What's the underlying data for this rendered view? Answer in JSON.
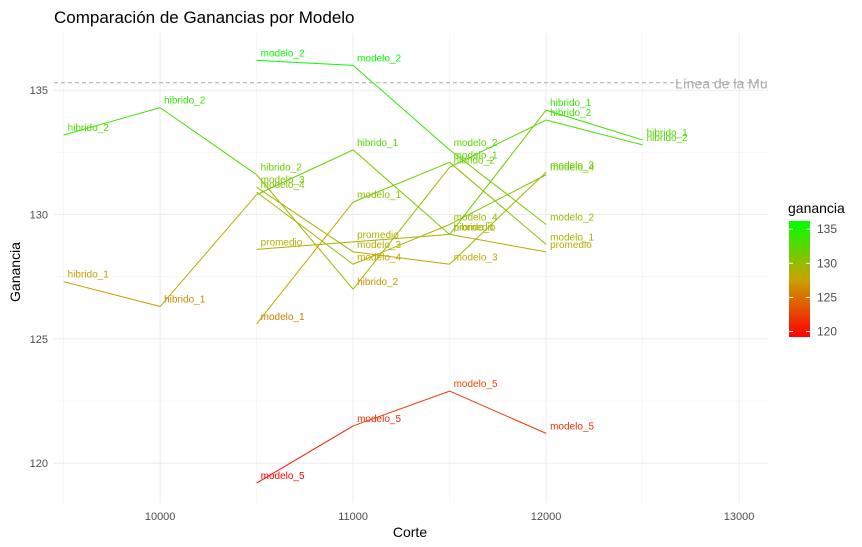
{
  "chart_data": {
    "type": "line",
    "title": "Comparación de Ganancias por Modelo",
    "xlabel": "Corte",
    "ylabel": "Ganancia",
    "xlim": [
      9450,
      13150
    ],
    "ylim": [
      118.4,
      137.3
    ],
    "x_ticks": [
      10000,
      11000,
      12000,
      13000
    ],
    "y_ticks": [
      120,
      125,
      130,
      135
    ],
    "grid": true,
    "reference_line": {
      "y": 135.3,
      "label": "Línea de la Mu",
      "color": "#aaaaaa"
    },
    "color_scale": {
      "name": "ganancia",
      "min": 119.2,
      "max": 136.2,
      "low_color": "#ff0000",
      "mid_color": "#c8a400",
      "high_color": "#00ff00",
      "ticks": [
        120,
        125,
        130,
        135
      ]
    },
    "series": [
      {
        "name": "hibrido_2",
        "x": [
          9500,
          10000,
          10500,
          11000,
          11500,
          12000,
          12500
        ],
        "y": [
          133.2,
          134.3,
          131.6,
          127.0,
          131.9,
          133.8,
          132.8
        ]
      },
      {
        "name": "hibrido_1",
        "x": [
          9500,
          10000,
          10500,
          11000,
          11500,
          12000,
          12500
        ],
        "y": [
          127.3,
          126.3,
          130.8,
          132.6,
          129.2,
          134.2,
          133.0
        ]
      },
      {
        "name": "modelo_2",
        "x": [
          10500,
          11000,
          11500,
          12000
        ],
        "y": [
          136.2,
          136.0,
          132.6,
          129.6
        ]
      },
      {
        "name": "modelo_3",
        "x": [
          10500,
          11000,
          11500,
          12000
        ],
        "y": [
          131.1,
          128.5,
          128.0,
          131.7
        ]
      },
      {
        "name": "modelo_4",
        "x": [
          10500,
          11000,
          11500,
          12000
        ],
        "y": [
          130.9,
          128.0,
          129.6,
          131.6
        ]
      },
      {
        "name": "modelo_1",
        "x": [
          10500,
          11000,
          11500,
          12000
        ],
        "y": [
          125.6,
          130.5,
          132.1,
          128.8
        ]
      },
      {
        "name": "promedio",
        "x": [
          10500,
          11000,
          11500,
          12000
        ],
        "y": [
          128.6,
          128.9,
          129.2,
          128.5
        ]
      },
      {
        "name": "modelo_5",
        "x": [
          10500,
          11000,
          11500,
          12000
        ],
        "y": [
          119.2,
          121.5,
          122.9,
          121.2
        ]
      }
    ],
    "point_labels": [
      {
        "text": "hibrido_2",
        "x": 9500,
        "y": 133.2
      },
      {
        "text": "hibrido_2",
        "x": 10000,
        "y": 134.3
      },
      {
        "text": "hibrido_2",
        "x": 10500,
        "y": 131.6
      },
      {
        "text": "hibrido_2",
        "x": 11000,
        "y": 127.0
      },
      {
        "text": "hibrido_2",
        "x": 11500,
        "y": 131.9
      },
      {
        "text": "hibrido_2",
        "x": 12000,
        "y": 133.8
      },
      {
        "text": "hibrido_2",
        "x": 12500,
        "y": 132.8
      },
      {
        "text": "hibrido_1",
        "x": 9500,
        "y": 127.3
      },
      {
        "text": "hibrido_1",
        "x": 10000,
        "y": 126.3
      },
      {
        "text": "hibrido_1",
        "x": 11000,
        "y": 132.6
      },
      {
        "text": "hibrido_1",
        "x": 11500,
        "y": 129.2
      },
      {
        "text": "hibrido_1",
        "x": 12000,
        "y": 134.2
      },
      {
        "text": "hibrido_1",
        "x": 12500,
        "y": 133.0
      },
      {
        "text": "modelo_2",
        "x": 10500,
        "y": 136.2
      },
      {
        "text": "modelo_2",
        "x": 11000,
        "y": 136.0
      },
      {
        "text": "modelo_2",
        "x": 11500,
        "y": 132.6
      },
      {
        "text": "modelo_2",
        "x": 12000,
        "y": 129.6
      },
      {
        "text": "modelo_3",
        "x": 10500,
        "y": 131.1
      },
      {
        "text": "modelo_3",
        "x": 11000,
        "y": 128.5
      },
      {
        "text": "modelo_3",
        "x": 11500,
        "y": 128.0
      },
      {
        "text": "modelo_3",
        "x": 12000,
        "y": 131.7
      },
      {
        "text": "modelo_4",
        "x": 10500,
        "y": 130.9
      },
      {
        "text": "modelo_4",
        "x": 11000,
        "y": 128.0
      },
      {
        "text": "modelo_4",
        "x": 11500,
        "y": 129.6
      },
      {
        "text": "modelo_4",
        "x": 12000,
        "y": 131.6
      },
      {
        "text": "modelo_1",
        "x": 10500,
        "y": 125.6
      },
      {
        "text": "modelo_1",
        "x": 11000,
        "y": 130.5
      },
      {
        "text": "modelo_1",
        "x": 11500,
        "y": 132.1
      },
      {
        "text": "modelo_1",
        "x": 12000,
        "y": 128.8
      },
      {
        "text": "promedio",
        "x": 10500,
        "y": 128.6
      },
      {
        "text": "promedio",
        "x": 11000,
        "y": 128.9
      },
      {
        "text": "promedio",
        "x": 11500,
        "y": 129.2
      },
      {
        "text": "promedio",
        "x": 12000,
        "y": 128.5
      },
      {
        "text": "modelo_5",
        "x": 10500,
        "y": 119.2
      },
      {
        "text": "modelo_5",
        "x": 11000,
        "y": 121.5
      },
      {
        "text": "modelo_5",
        "x": 11500,
        "y": 122.9
      },
      {
        "text": "modelo_5",
        "x": 12000,
        "y": 121.2
      }
    ]
  }
}
